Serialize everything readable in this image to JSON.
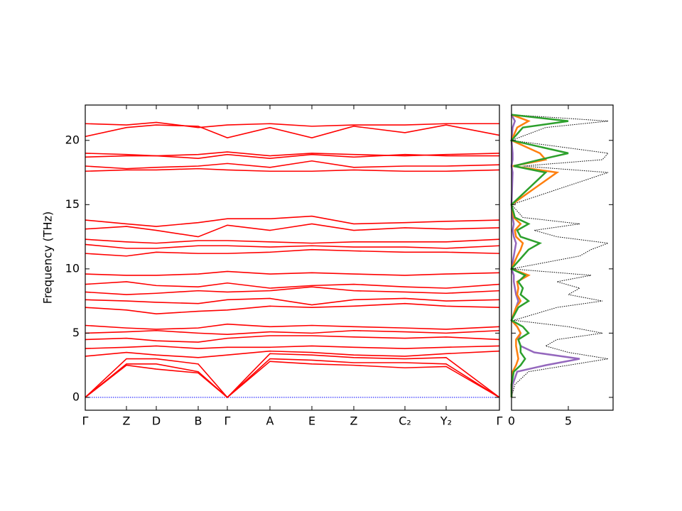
{
  "chart_data": [
    {
      "type": "line",
      "ylabel": "Frequency (THz)",
      "color": "#ff0000",
      "categories": [
        "Γ",
        "Z",
        "D",
        "B",
        "Γ",
        "A",
        "E",
        "Z",
        "C₂",
        "Y₂",
        "Γ"
      ],
      "ylim": [
        -1,
        22.75
      ],
      "yticks": [
        0,
        5,
        10,
        15,
        20
      ],
      "series": [
        {
          "color": "#0000ff",
          "linestyle": "dotted",
          "values": [
            0,
            0,
            0,
            0,
            0,
            0,
            0,
            0,
            0,
            0,
            0
          ]
        },
        {
          "values": [
            0,
            2.5,
            2.2,
            1.9,
            0,
            2.8,
            2.6,
            2.5,
            2.3,
            2.4,
            0
          ]
        },
        {
          "values": [
            0,
            2.6,
            2.6,
            2.0,
            0,
            3.0,
            2.9,
            2.7,
            2.7,
            2.6,
            0
          ]
        },
        {
          "values": [
            0,
            3.0,
            3.0,
            2.6,
            0,
            3.4,
            3.3,
            3.1,
            3.0,
            3.1,
            0
          ]
        },
        {
          "values": [
            3.2,
            3.5,
            3.3,
            3.1,
            3.3,
            3.6,
            3.5,
            3.3,
            3.2,
            3.4,
            3.6
          ]
        },
        {
          "values": [
            3.8,
            3.9,
            4.0,
            3.8,
            3.9,
            3.9,
            4.0,
            3.9,
            3.8,
            3.9,
            4.0
          ]
        },
        {
          "values": [
            4.5,
            4.6,
            4.4,
            4.3,
            4.6,
            4.8,
            4.8,
            4.7,
            4.6,
            4.7,
            4.5
          ]
        },
        {
          "values": [
            5.0,
            5.1,
            5.2,
            5.0,
            4.9,
            5.1,
            5.0,
            5.2,
            5.1,
            5.0,
            5.2
          ]
        },
        {
          "values": [
            5.6,
            5.4,
            5.3,
            5.4,
            5.7,
            5.5,
            5.6,
            5.5,
            5.4,
            5.3,
            5.5
          ]
        },
        {
          "values": [
            7.0,
            6.8,
            6.5,
            6.7,
            6.8,
            7.1,
            7.0,
            7.1,
            7.3,
            7.1,
            7.0
          ]
        },
        {
          "values": [
            7.6,
            7.5,
            7.4,
            7.3,
            7.6,
            7.7,
            7.2,
            7.6,
            7.7,
            7.5,
            7.6
          ]
        },
        {
          "values": [
            8.2,
            8.0,
            8.1,
            8.3,
            8.2,
            8.3,
            8.6,
            8.3,
            8.2,
            8.1,
            8.3
          ]
        },
        {
          "values": [
            8.8,
            9.0,
            8.7,
            8.6,
            8.9,
            8.5,
            8.7,
            8.8,
            8.6,
            8.5,
            8.8
          ]
        },
        {
          "values": [
            9.6,
            9.5,
            9.5,
            9.6,
            9.8,
            9.6,
            9.7,
            9.6,
            9.5,
            9.6,
            9.7
          ]
        },
        {
          "values": [
            11.2,
            11.0,
            11.3,
            11.2,
            11.2,
            11.3,
            11.5,
            11.4,
            11.3,
            11.3,
            11.2
          ]
        },
        {
          "values": [
            11.9,
            11.6,
            11.6,
            11.8,
            11.8,
            11.7,
            11.8,
            11.7,
            11.7,
            11.6,
            11.8
          ]
        },
        {
          "values": [
            12.3,
            12.1,
            12.0,
            12.2,
            12.2,
            12.1,
            12.0,
            12.1,
            12.1,
            12.1,
            12.3
          ]
        },
        {
          "values": [
            13.1,
            13.3,
            13.0,
            12.5,
            13.4,
            13.0,
            13.5,
            13.0,
            13.2,
            13.1,
            13.2
          ]
        },
        {
          "values": [
            13.8,
            13.5,
            13.3,
            13.6,
            13.9,
            13.9,
            14.1,
            13.5,
            13.6,
            13.7,
            13.8
          ]
        },
        {
          "values": [
            17.6,
            17.7,
            17.7,
            17.8,
            17.7,
            17.6,
            17.6,
            17.7,
            17.6,
            17.6,
            17.7
          ]
        },
        {
          "values": [
            18.0,
            17.8,
            17.9,
            18.0,
            18.2,
            17.9,
            18.4,
            17.9,
            18.0,
            18.0,
            18.1
          ]
        },
        {
          "values": [
            18.7,
            18.8,
            18.8,
            18.6,
            18.9,
            18.6,
            18.9,
            18.7,
            18.9,
            18.8,
            18.8
          ]
        },
        {
          "values": [
            19.0,
            18.9,
            18.8,
            18.9,
            19.1,
            18.8,
            19.0,
            18.9,
            18.8,
            18.9,
            19.0
          ]
        },
        {
          "values": [
            20.3,
            21.0,
            21.2,
            21.1,
            20.2,
            21.0,
            20.2,
            21.1,
            20.6,
            21.2,
            20.4
          ]
        },
        {
          "values": [
            21.3,
            21.2,
            21.4,
            21.0,
            21.2,
            21.3,
            21.1,
            21.2,
            21.2,
            21.3,
            21.3
          ]
        }
      ]
    },
    {
      "type": "dos",
      "xlim": [
        0,
        8.94
      ],
      "xticks": [
        0,
        5
      ],
      "frequency": [
        0,
        1,
        2,
        2.5,
        3,
        3.5,
        4,
        4.5,
        5,
        5.5,
        6,
        7,
        7.5,
        8,
        8.5,
        9,
        9.5,
        10,
        11,
        11.5,
        12,
        12.5,
        13,
        13.5,
        14,
        15,
        17.5,
        18,
        18.5,
        19,
        20,
        21,
        21.5,
        22
      ],
      "series": [
        {
          "color": "#000000",
          "linestyle": "dotted",
          "values": [
            0,
            0.3,
            1.5,
            5,
            8.5,
            5,
            3,
            4,
            8,
            5,
            0.2,
            4,
            8,
            5,
            6,
            4,
            7,
            0,
            6,
            7,
            8.5,
            4,
            2,
            6,
            1,
            0,
            8.5,
            1,
            8,
            8.5,
            0,
            3,
            8.5,
            0
          ]
        },
        {
          "color": "#9467bd",
          "values": [
            0,
            0.1,
            0.5,
            3,
            6,
            2,
            0.8,
            0.6,
            0.8,
            0.5,
            0,
            0.4,
            0.6,
            0.4,
            0.3,
            0.2,
            0.2,
            0,
            0.2,
            0.3,
            0.4,
            0.2,
            0.1,
            0.2,
            0.1,
            0,
            0.1,
            0,
            0.1,
            0.1,
            0,
            0.1,
            0.3,
            0
          ]
        },
        {
          "color": "#ff7f0e",
          "values": [
            0,
            0,
            0.1,
            0.4,
            0.6,
            0.5,
            0.4,
            0.4,
            0.8,
            0.5,
            0,
            0.4,
            0.8,
            0.5,
            0.6,
            0.5,
            1.5,
            0,
            0.5,
            0.8,
            1,
            0.4,
            0.3,
            0.8,
            0.2,
            0,
            4,
            0.1,
            3,
            2.5,
            0,
            0.5,
            1.5,
            0
          ]
        },
        {
          "color": "#2ca02c",
          "values": [
            0,
            0,
            0.2,
            0.8,
            1.2,
            0.8,
            0.8,
            0.6,
            1.5,
            1,
            0,
            0.6,
            1.5,
            0.8,
            1,
            0.6,
            1.2,
            0,
            1,
            1.5,
            2.5,
            0.8,
            0.5,
            1.5,
            0.3,
            0,
            3,
            0.2,
            2.5,
            5,
            0,
            1,
            5,
            0
          ]
        }
      ]
    }
  ]
}
